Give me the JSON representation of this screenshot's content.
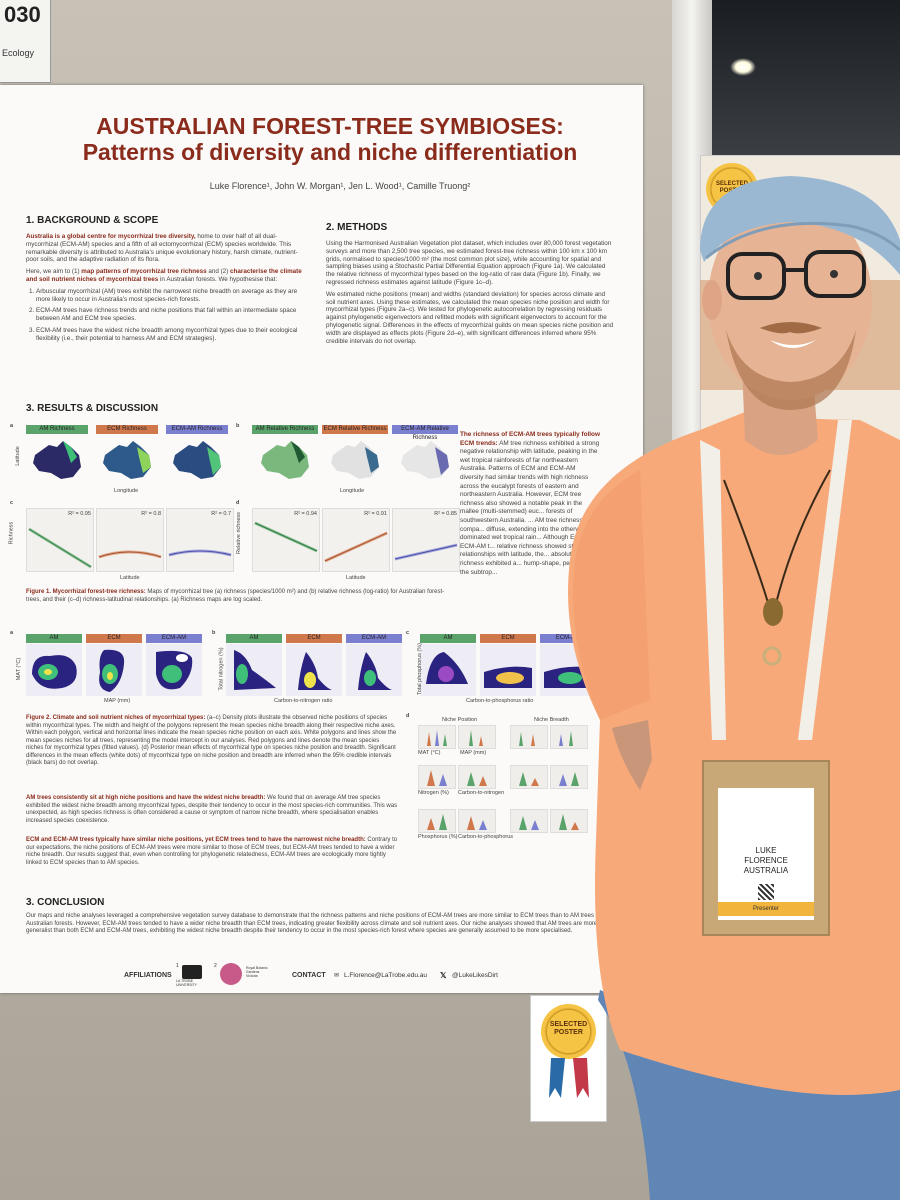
{
  "corner_card": {
    "number": "030",
    "label": "Ecology"
  },
  "poster": {
    "title_line1": "AUSTRALIAN FOREST-TREE SYMBIOSES:",
    "title_line2": "Patterns of diversity and niche differentiation",
    "authors": "Luke Florence¹, John W. Morgan¹, Jen L. Wood¹, Camille Truong²",
    "sections": {
      "background": {
        "heading": "1.  BACKGROUND & SCOPE",
        "p1_lead": "Australia is a global centre for mycorrhizal tree diversity,",
        "p1_rest": " home to over half of all dual-mycorrhizal (ECM-AM) species and a fifth of all ectomycorrhizal (ECM) species worldwide. This remarkable diversity is attributed to Australia's unique evolutionary history, harsh climate, nutrient-poor soils, and the adaptive radiation of its flora.",
        "p2_start": "Here, we aim to (1) ",
        "p2_em1": "map patterns of mycorrhizal tree richness",
        "p2_mid": " and (2) ",
        "p2_em2": "characterise the climate and soil nutrient niches of mycorrhizal trees",
        "p2_end": " in Australian forests. We hypothesise that:",
        "hypotheses": [
          "Arbuscular mycorrhizal (AM) trees exhibit the narrowest niche breadth on average as they are more likely to occur in Australia's most species-rich forests.",
          "ECM-AM trees have richness trends and niche positions that fall within an intermediate space between AM and ECM tree species.",
          "ECM-AM trees have the widest niche breadth among mycorrhizal types due to their ecological flexibility (i.e., their potential to harness AM and ECM strategies)."
        ]
      },
      "methods": {
        "heading": "2.  METHODS",
        "p1": "Using the Harmonised Australian Vegetation plot dataset, which includes over 80,000 forest vegetation surveys and more than 2,500 tree species, we estimated forest-tree richness within 100 km x 100 km grids, normalised to species/1000 m² (the most common plot size), while accounting for spatial and sampling biases using a Stochastic Partial Differential Equation approach (Figure 1a). We calculated the relative richness of mycorrhizal types based on the log-ratio of raw data (Figure 1b). Finally, we regressed richness estimates against latitude (Figure 1c–d).",
        "p2": "We estimated niche positions (mean) and widths (standard deviation) for species across climate and soil nutrient axes. Using these estimates, we calculated the mean species niche position and width for mycorrhizal types (Figure 2a–c). We tested for phylogenetic autocorrelation by regressing residuals against phylogenetic eigenvectors and refitted models with significant eigenvectors to account for the phylogenetic signal. Differences in the effects of mycorrhizal guilds on mean species niche position and width are displayed as effects plots (Figure 2d–e), with significant differences inferred where 95% credible intervals do not overlap."
      },
      "results": {
        "heading": "3.  RESULTS & DISCUSSION",
        "side_lead": "The richness of ECM-AM trees typically follow ECM trends:",
        "side_text": " AM tree richness exhibited a strong negative relationship with latitude, peaking in the wet tropical rainforests of far northeastern Australia. Patterns of ECM and ECM-AM diversity had similar trends with high richness across the eucalypt forests of eastern and northeastern Australia. However, ECM tree richness also showed a notable peak in the mallee (multi-stemmed) euc... forests of southwestern Australia. ... AM tree richness was compa... diffuse, extending into the otherwi... dominated wet tropical rain... Although ECM and ECM-AM t... relative richness showed strong p... relationships with latitude, the... absolute richness exhibited a... hump-shape, peaking in the subtrop...",
        "fig1_caption_lead": "Figure 1. Mycorrhizal forest-tree richness:",
        "fig1_caption": " Maps of mycorrhizal tree (a) richness (species/1000 m²) and (b) relative richness (log-ratio) for Australian forest-trees, and their (c–d) richness-latitudinal relationships. (a) Richness maps are log scaled.",
        "fig2_caption_lead": "Figure 2. Climate and soil nutrient niches of mycorrhizal types:",
        "fig2_caption": " (a–c) Density plots illustrate the observed niche positions of species within mycorrhizal types. The width and height of the polygons represent the mean species niche breadth along their respective niche axes. Within each polygon, vertical and horizontal lines indicate the mean species niche position on each axis. White polygons and lines show the mean species niches for all trees, representing the model intercept in our analyses. Red polygons and lines denote the mean species niches for mycorrhizal types (fitted values). (d) Posterior mean effects of mycorrhizal type on species niche position and breadth. Significant differences in the mean effects (white dots) of mycorrhizal type on niche position and breadth are inferred when the 95% credible intervals (black bars) do not overlap.",
        "p_am_lead": "AM trees consistently sit at high niche positions and have the widest niche breadth:",
        "p_am": " We found that on average AM tree species exhibited the widest niche breadth among mycorrhizal types, despite their tendency to occur in the most species-rich communities. This was unexpected, as high species richness is often considered a cause or symptom of narrow niche breadth, where specialisation enables increased species coexistence.",
        "p_ecm_lead": "ECM and ECM-AM trees typically have similar niche positions, yet ECM trees tend to have the narrowest niche breadth:",
        "p_ecm": " Contrary to our expectations, the niche positions of ECM-AM trees were more similar to those of ECM trees, but ECM-AM trees tended to have a wider niche breadth. Our results suggest that, even when controlling for phylogenetic relatedness, ECM-AM trees are ecologically more tightly linked to ECM species than to AM species."
      },
      "conclusion": {
        "heading": "3.  CONCLUSION",
        "text": "Our maps and niche analyses leveraged a comprehensive vegetation survey database to demonstrate that the richness patterns and niche positions of ECM-AM trees are more similar to ECM trees than to AM trees in Australian forests. However, ECM-AM trees tended to have a wider niche breadth than ECM trees, indicating greater flexibility across climate and soil nutrient axes. Our niche analyses showed that AM trees are more generalist than both ECM and ECM-AM trees, exhibiting the widest niche breadth despite their tendency to occur in the most species-rich forest where species are generally assumed to be more specialised."
      }
    },
    "figure": {
      "panel_letters": [
        "a",
        "b",
        "c",
        "d",
        "a",
        "b",
        "c",
        "d"
      ],
      "fig1a_tags": [
        "AM Richness",
        "ECM Richness",
        "ECM-AM Richness"
      ],
      "fig1b_tags": [
        "AM Relative Richness",
        "ECM Relative Richness",
        "ECM-AM Relative Richness"
      ],
      "axis_longitude": "Longitude",
      "axis_latitude": "Latitude",
      "axis_richness": "Richness",
      "axis_rel_richness": "Relative richness",
      "axis_lat_short": "Latitude",
      "r2_c": [
        "R² = 0.95",
        "R² = 0.8",
        "R² = 0.7"
      ],
      "r2_d": [
        "R² = 0.94",
        "R² = 0.91",
        "R² = 0.85"
      ],
      "fig2_tags": [
        "AM",
        "ECM",
        "ECM-AM"
      ],
      "fig2_xaxes": [
        "MAP (mm)",
        "Carbon-to-nitrogen ratio",
        "Carbon-to-phosphorus ratio"
      ],
      "fig2_yaxes": [
        "MAT (°C)",
        "Total nitrogen (%)",
        "Total phosphorus (%)"
      ],
      "fig2d_headers": [
        "Niche Position",
        "Niche Breadth"
      ],
      "fig2d_labels": [
        "MAT (°C)",
        "MAP (mm)",
        "Nitrogen (%)",
        "Carbon-to-nitrogen",
        "Phosphorus (%)",
        "Carbon-to-phosphorus"
      ]
    },
    "footer": {
      "affiliations_label": "AFFILIATIONS",
      "aff_num1": "1",
      "aff_num2": "2",
      "university": "LA TROBE UNIVERSITY",
      "gardens": "Royal Botanic Gardens Victoria",
      "contact_label": "CONTACT",
      "email": "L.Florence@LaTrobe.edu.au",
      "handle": "@LukeLikesDirt"
    }
  },
  "sticker": {
    "text_line1": "SELECTED",
    "text_line2": "POSTER"
  },
  "sticker_bg": {
    "text_line1": "SELECTED",
    "text_line2": "POSTER"
  },
  "badge": {
    "name_line1": "LUKE",
    "name_line2": "FLORENCE",
    "country": "AUSTRALIA",
    "strip": "Presenter"
  },
  "colors": {
    "title_red": "#8a2b1c",
    "am_green": "#5aa36a",
    "ecm_orange": "#d0784c",
    "ecmam_purple": "#7b7fd0",
    "shirt": "#f7a97a",
    "cap": "#9bb8d3"
  }
}
